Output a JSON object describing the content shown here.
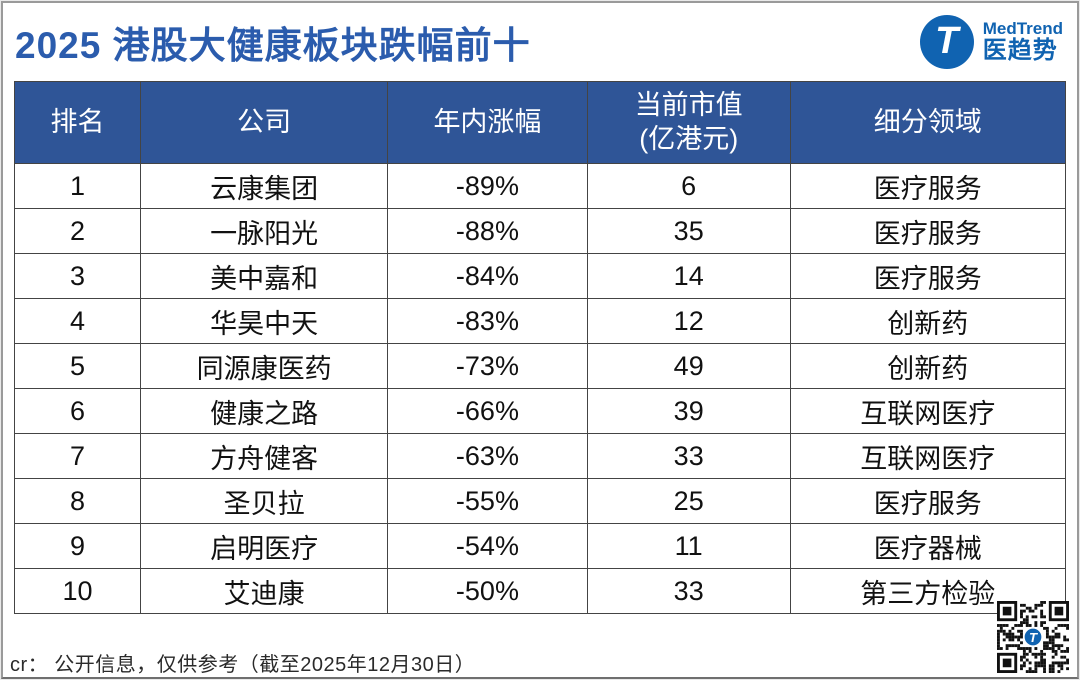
{
  "title": "2025 港股大健康板块跌幅前十",
  "logo": {
    "monogram": "T",
    "brand_en": "MedTrend",
    "brand_cn": "医趋势"
  },
  "table": {
    "columns": [
      "排名",
      "公司",
      "年内涨幅",
      "当前市值\n(亿港元)",
      "细分领域"
    ],
    "rows": [
      [
        "1",
        "云康集团",
        "-89%",
        "6",
        "医疗服务"
      ],
      [
        "2",
        "一脉阳光",
        "-88%",
        "35",
        "医疗服务"
      ],
      [
        "3",
        "美中嘉和",
        "-84%",
        "14",
        "医疗服务"
      ],
      [
        "4",
        "华昊中天",
        "-83%",
        "12",
        "创新药"
      ],
      [
        "5",
        "同源康医药",
        "-73%",
        "49",
        "创新药"
      ],
      [
        "6",
        "健康之路",
        "-66%",
        "39",
        "互联网医疗"
      ],
      [
        "7",
        "方舟健客",
        "-63%",
        "33",
        "互联网医疗"
      ],
      [
        "8",
        "圣贝拉",
        "-55%",
        "25",
        "医疗服务"
      ],
      [
        "9",
        "启明医疗",
        "-54%",
        "11",
        "医疗器械"
      ],
      [
        "10",
        "艾迪康",
        "-50%",
        "33",
        "第三方检验"
      ]
    ]
  },
  "footer": {
    "note": "cr：  公开信息，仅供参考（截至2025年12月30日）"
  },
  "colors": {
    "header_bg": "#2f5597",
    "title_blue": "#2b5cad",
    "logo_blue": "#1063b1"
  }
}
